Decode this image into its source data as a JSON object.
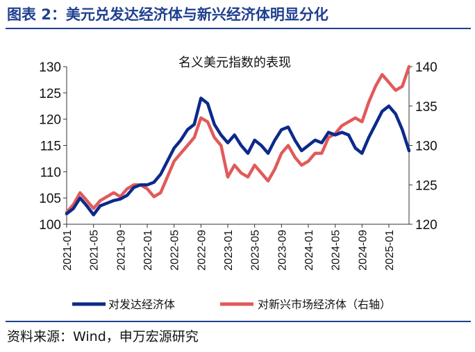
{
  "figure": {
    "title": "图表 2：美元兑发达经济体与新兴经济体明显分化",
    "source": "资料来源：Wind，申万宏源研究"
  },
  "chart_data": {
    "type": "line",
    "title": "名义美元指数的表现",
    "xlabel": "",
    "ylabel": "",
    "y_left": {
      "lim": [
        100,
        130
      ],
      "ticks": [
        100,
        105,
        110,
        115,
        120,
        125,
        130
      ]
    },
    "y_right": {
      "lim": [
        120,
        140
      ],
      "ticks": [
        120,
        125,
        130,
        135,
        140
      ]
    },
    "x_range": [
      "2021-01",
      "2025-04"
    ],
    "x_ticks": [
      "2021-01",
      "2021-05",
      "2021-09",
      "2022-01",
      "2022-05",
      "2022-09",
      "2023-01",
      "2023-05",
      "2023-09",
      "2024-01",
      "2024-05",
      "2024-09",
      "2025-01"
    ],
    "grid": false,
    "legend_position": "bottom",
    "series": [
      {
        "name": "对发达经济体",
        "axis": "left",
        "color": "#0c2a8a",
        "points": [
          [
            "2021-01",
            102.0
          ],
          [
            "2021-02",
            103.0
          ],
          [
            "2021-03",
            105.0
          ],
          [
            "2021-04",
            103.5
          ],
          [
            "2021-05",
            101.8
          ],
          [
            "2021-06",
            103.5
          ],
          [
            "2021-07",
            104.0
          ],
          [
            "2021-08",
            104.5
          ],
          [
            "2021-09",
            104.8
          ],
          [
            "2021-10",
            105.5
          ],
          [
            "2021-11",
            107.0
          ],
          [
            "2021-12",
            107.5
          ],
          [
            "2022-01",
            107.5
          ],
          [
            "2022-02",
            108.0
          ],
          [
            "2022-03",
            109.5
          ],
          [
            "2022-04",
            112.0
          ],
          [
            "2022-05",
            114.5
          ],
          [
            "2022-06",
            116.0
          ],
          [
            "2022-07",
            118.0
          ],
          [
            "2022-08",
            119.0
          ],
          [
            "2022-09",
            124.0
          ],
          [
            "2022-10",
            123.0
          ],
          [
            "2022-11",
            119.0
          ],
          [
            "2022-12",
            117.0
          ],
          [
            "2023-01",
            115.5
          ],
          [
            "2023-02",
            117.0
          ],
          [
            "2023-03",
            115.0
          ],
          [
            "2023-04",
            113.5
          ],
          [
            "2023-05",
            116.0
          ],
          [
            "2023-06",
            115.0
          ],
          [
            "2023-07",
            113.5
          ],
          [
            "2023-08",
            116.0
          ],
          [
            "2023-09",
            118.0
          ],
          [
            "2023-10",
            118.5
          ],
          [
            "2023-11",
            116.0
          ],
          [
            "2023-12",
            114.0
          ],
          [
            "2024-01",
            115.0
          ],
          [
            "2024-02",
            116.0
          ],
          [
            "2024-03",
            115.5
          ],
          [
            "2024-04",
            117.5
          ],
          [
            "2024-05",
            117.0
          ],
          [
            "2024-06",
            117.5
          ],
          [
            "2024-07",
            117.0
          ],
          [
            "2024-08",
            114.5
          ],
          [
            "2024-09",
            113.5
          ],
          [
            "2024-10",
            116.5
          ],
          [
            "2024-11",
            119.0
          ],
          [
            "2024-12",
            121.5
          ],
          [
            "2025-01",
            122.5
          ],
          [
            "2025-02",
            121.0
          ],
          [
            "2025-03",
            118.0
          ],
          [
            "2025-04",
            114.0
          ]
        ]
      },
      {
        "name": "对新兴市场经济体（右轴）",
        "axis": "right",
        "color": "#e15a5a",
        "points": [
          [
            "2021-01",
            121.5
          ],
          [
            "2021-02",
            122.5
          ],
          [
            "2021-03",
            124.0
          ],
          [
            "2021-04",
            123.0
          ],
          [
            "2021-05",
            122.0
          ],
          [
            "2021-06",
            123.0
          ],
          [
            "2021-07",
            123.5
          ],
          [
            "2021-08",
            124.0
          ],
          [
            "2021-09",
            123.5
          ],
          [
            "2021-10",
            124.5
          ],
          [
            "2021-11",
            125.0
          ],
          [
            "2021-12",
            125.0
          ],
          [
            "2022-01",
            124.5
          ],
          [
            "2022-02",
            123.5
          ],
          [
            "2022-03",
            124.0
          ],
          [
            "2022-04",
            126.0
          ],
          [
            "2022-05",
            128.0
          ],
          [
            "2022-06",
            129.0
          ],
          [
            "2022-07",
            130.0
          ],
          [
            "2022-08",
            131.0
          ],
          [
            "2022-09",
            133.5
          ],
          [
            "2022-10",
            133.0
          ],
          [
            "2022-11",
            131.0
          ],
          [
            "2022-12",
            130.0
          ],
          [
            "2023-01",
            126.0
          ],
          [
            "2023-02",
            127.5
          ],
          [
            "2023-03",
            126.5
          ],
          [
            "2023-04",
            126.0
          ],
          [
            "2023-05",
            127.5
          ],
          [
            "2023-06",
            126.5
          ],
          [
            "2023-07",
            125.5
          ],
          [
            "2023-08",
            127.0
          ],
          [
            "2023-09",
            129.0
          ],
          [
            "2023-10",
            130.0
          ],
          [
            "2023-11",
            128.5
          ],
          [
            "2023-12",
            127.5
          ],
          [
            "2024-01",
            128.0
          ],
          [
            "2024-02",
            129.0
          ],
          [
            "2024-03",
            129.0
          ],
          [
            "2024-04",
            131.0
          ],
          [
            "2024-05",
            131.5
          ],
          [
            "2024-06",
            132.5
          ],
          [
            "2024-07",
            133.0
          ],
          [
            "2024-08",
            133.5
          ],
          [
            "2024-09",
            133.0
          ],
          [
            "2024-10",
            135.5
          ],
          [
            "2024-11",
            137.5
          ],
          [
            "2024-12",
            139.0
          ],
          [
            "2025-01",
            138.0
          ],
          [
            "2025-02",
            137.0
          ],
          [
            "2025-03",
            137.5
          ],
          [
            "2025-04",
            140.0
          ]
        ]
      }
    ]
  }
}
